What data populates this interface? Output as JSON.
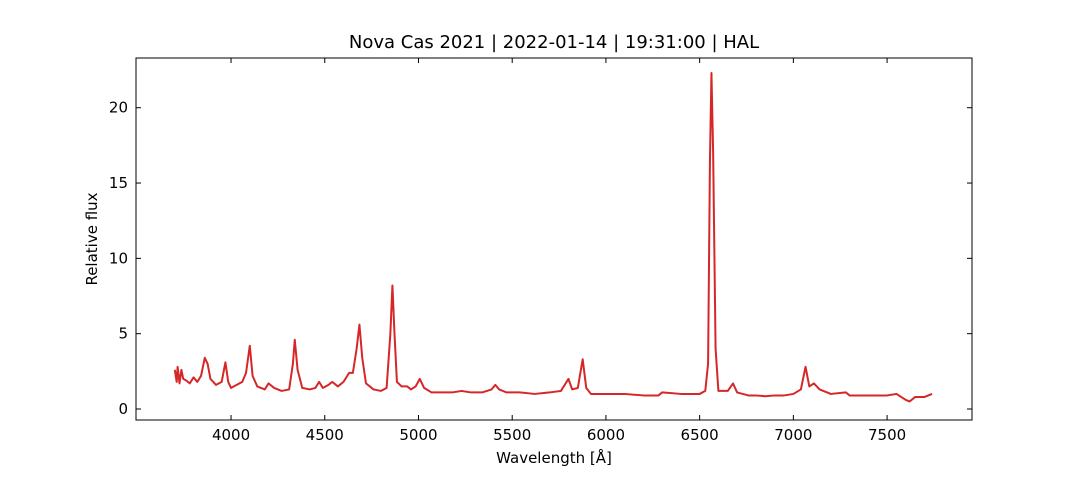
{
  "chart_data": {
    "type": "line",
    "title": "Nova Cas 2021 | 2022-01-14 | 19:31:00 | HAL",
    "x_label": "Wavelength [Å]",
    "y_label": "Relative flux",
    "x": [
      3700,
      3710,
      3715,
      3725,
      3735,
      3745,
      3760,
      3780,
      3800,
      3820,
      3840,
      3860,
      3875,
      3890,
      3920,
      3950,
      3970,
      3985,
      4000,
      4030,
      4060,
      4080,
      4100,
      4115,
      4140,
      4180,
      4200,
      4230,
      4270,
      4310,
      4330,
      4340,
      4355,
      4380,
      4420,
      4450,
      4470,
      4490,
      4520,
      4540,
      4570,
      4600,
      4630,
      4650,
      4670,
      4685,
      4700,
      4720,
      4760,
      4800,
      4830,
      4850,
      4861,
      4872,
      4885,
      4910,
      4940,
      4960,
      4985,
      5007,
      5030,
      5070,
      5120,
      5180,
      5230,
      5280,
      5340,
      5390,
      5410,
      5430,
      5470,
      5540,
      5620,
      5700,
      5760,
      5800,
      5820,
      5850,
      5876,
      5895,
      5920,
      6000,
      6100,
      6200,
      6280,
      6300,
      6400,
      6500,
      6530,
      6545,
      6555,
      6563,
      6572,
      6585,
      6600,
      6650,
      6678,
      6700,
      6760,
      6800,
      6850,
      6900,
      6950,
      7000,
      7040,
      7065,
      7085,
      7110,
      7140,
      7200,
      7280,
      7300,
      7400,
      7500,
      7550,
      7600,
      7620,
      7650,
      7700,
      7740
    ],
    "series": [
      {
        "name": "Relative flux",
        "color": "#d62728",
        "values": [
          2.6,
          1.8,
          2.8,
          1.7,
          2.6,
          2.0,
          1.9,
          1.7,
          2.1,
          1.8,
          2.2,
          3.4,
          3.0,
          2.0,
          1.6,
          1.8,
          3.1,
          1.8,
          1.4,
          1.6,
          1.8,
          2.4,
          4.2,
          2.2,
          1.5,
          1.3,
          1.7,
          1.4,
          1.2,
          1.3,
          3.0,
          4.6,
          2.6,
          1.4,
          1.3,
          1.4,
          1.8,
          1.4,
          1.6,
          1.8,
          1.5,
          1.8,
          2.4,
          2.4,
          4.0,
          5.6,
          3.4,
          1.7,
          1.3,
          1.2,
          1.4,
          5.0,
          8.2,
          5.0,
          1.8,
          1.5,
          1.5,
          1.3,
          1.5,
          2.0,
          1.4,
          1.1,
          1.1,
          1.1,
          1.2,
          1.1,
          1.1,
          1.3,
          1.6,
          1.3,
          1.1,
          1.1,
          1.0,
          1.1,
          1.2,
          2.0,
          1.3,
          1.4,
          3.3,
          1.4,
          1.0,
          1.0,
          1.0,
          0.9,
          0.9,
          1.1,
          1.0,
          1.0,
          1.2,
          3.0,
          16.5,
          22.3,
          17.0,
          4.0,
          1.2,
          1.2,
          1.7,
          1.1,
          0.9,
          0.9,
          0.85,
          0.9,
          0.9,
          1.0,
          1.3,
          2.8,
          1.5,
          1.7,
          1.3,
          1.0,
          1.1,
          0.9,
          0.9,
          0.9,
          1.0,
          0.6,
          0.5,
          0.8,
          0.8,
          1.0
        ]
      }
    ],
    "xlim": [
      3493,
      7953
    ],
    "ylim": [
      -0.73,
      23.3
    ],
    "xticks": [
      4000,
      4500,
      5000,
      5500,
      6000,
      6500,
      7000,
      7500
    ],
    "yticks": [
      0,
      5,
      10,
      15,
      20
    ]
  }
}
